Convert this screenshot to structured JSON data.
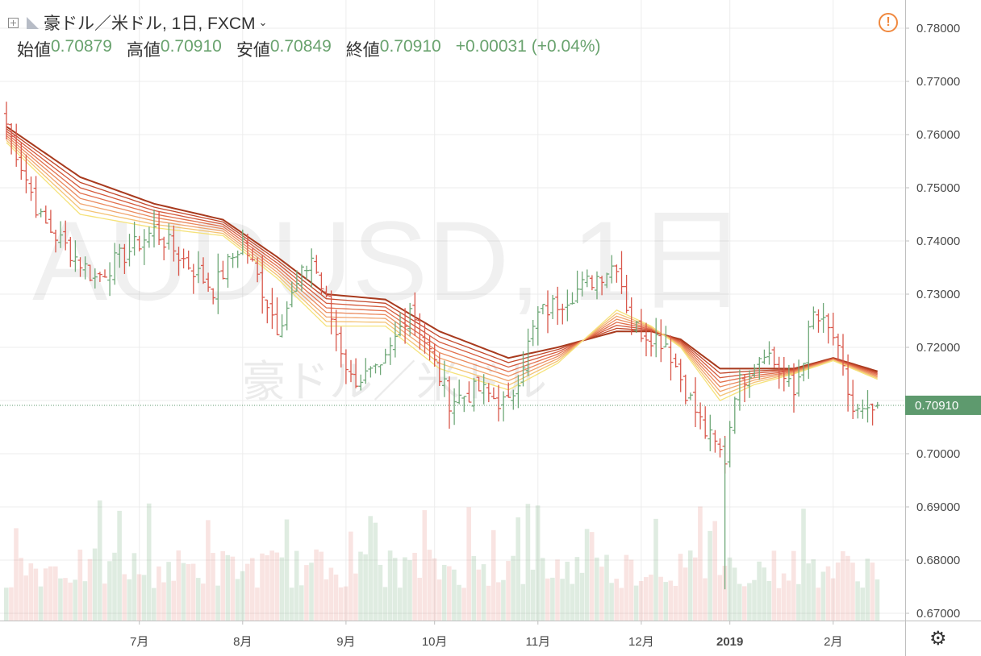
{
  "header": {
    "symbol_title": "豪ドル／米ドル, 1日, FXCM",
    "open_label": "始値",
    "open_value": "0.70879",
    "high_label": "高値",
    "high_value": "0.70910",
    "low_label": "安値",
    "low_value": "0.70849",
    "close_label": "終値",
    "close_value": "0.70910",
    "change": "+0.00031 (+0.04%)"
  },
  "watermark": {
    "symbol": "AUDUSD, 1日",
    "description": "豪ドル／米ドル"
  },
  "icons": {
    "add": "add-symbol-icon",
    "flag": "flag-icon",
    "dropdown": "chevron-down-icon",
    "alert": "warning-icon",
    "settings": "gear-icon"
  },
  "colors": {
    "up": "#6fa878",
    "down": "#d9584c",
    "last_price_bg": "#5e9a6e",
    "ribbon_slow": "#a83a1e",
    "ribbon_fast": "#f5e27a"
  },
  "chart_data": {
    "type": "candlestick",
    "timeframe": "1日",
    "source": "FXCM",
    "price_axis": {
      "ticks": [
        "0.78000",
        "0.77000",
        "0.76000",
        "0.75000",
        "0.74000",
        "0.73000",
        "0.72000",
        "0.71000",
        "0.70000",
        "0.69000",
        "0.68000",
        "0.67000"
      ],
      "range": [
        0.667,
        0.783
      ]
    },
    "last_price": "0.70910",
    "time_axis": [
      {
        "label": "7月",
        "bold": false,
        "bar": 27
      },
      {
        "label": "8月",
        "bold": false,
        "bar": 48
      },
      {
        "label": "9月",
        "bold": false,
        "bar": 69
      },
      {
        "label": "10月",
        "bold": false,
        "bar": 87
      },
      {
        "label": "11月",
        "bold": false,
        "bar": 108
      },
      {
        "label": "12月",
        "bold": false,
        "bar": 129
      },
      {
        "label": "2019",
        "bold": true,
        "bar": 147
      },
      {
        "label": "2月",
        "bold": false,
        "bar": 168
      }
    ],
    "key_points": [
      {
        "bar": 0,
        "close": 0.762
      },
      {
        "bar": 7,
        "close": 0.744
      },
      {
        "bar": 18,
        "close": 0.733
      },
      {
        "bar": 30,
        "close": 0.742
      },
      {
        "bar": 42,
        "close": 0.731
      },
      {
        "bar": 48,
        "close": 0.74
      },
      {
        "bar": 55,
        "close": 0.724
      },
      {
        "bar": 62,
        "close": 0.737
      },
      {
        "bar": 70,
        "close": 0.714
      },
      {
        "bar": 76,
        "close": 0.715
      },
      {
        "bar": 82,
        "close": 0.728
      },
      {
        "bar": 90,
        "close": 0.71
      },
      {
        "bar": 96,
        "close": 0.712
      },
      {
        "bar": 102,
        "close": 0.709
      },
      {
        "bar": 108,
        "close": 0.726
      },
      {
        "bar": 118,
        "close": 0.732
      },
      {
        "bar": 124,
        "close": 0.736
      },
      {
        "bar": 127,
        "close": 0.724
      },
      {
        "bar": 134,
        "close": 0.721
      },
      {
        "bar": 138,
        "close": 0.712
      },
      {
        "bar": 142,
        "close": 0.704
      },
      {
        "bar": 146,
        "close": 0.699
      },
      {
        "bar": 148,
        "close": 0.712
      },
      {
        "bar": 154,
        "close": 0.72
      },
      {
        "bar": 160,
        "close": 0.711
      },
      {
        "bar": 164,
        "close": 0.726
      },
      {
        "bar": 168,
        "close": 0.722
      },
      {
        "bar": 172,
        "close": 0.708
      },
      {
        "bar": 175,
        "close": 0.707
      },
      {
        "bar": 177,
        "close": 0.7091
      }
    ],
    "ribbon": [
      {
        "bar": 0,
        "slow": 0.7615,
        "fast": 0.7585
      },
      {
        "bar": 15,
        "slow": 0.752,
        "fast": 0.745
      },
      {
        "bar": 30,
        "slow": 0.747,
        "fast": 0.7425
      },
      {
        "bar": 44,
        "slow": 0.744,
        "fast": 0.741
      },
      {
        "bar": 55,
        "slow": 0.737,
        "fast": 0.733
      },
      {
        "bar": 65,
        "slow": 0.73,
        "fast": 0.724
      },
      {
        "bar": 77,
        "slow": 0.729,
        "fast": 0.724
      },
      {
        "bar": 88,
        "slow": 0.723,
        "fast": 0.716
      },
      {
        "bar": 102,
        "slow": 0.718,
        "fast": 0.712
      },
      {
        "bar": 112,
        "slow": 0.72,
        "fast": 0.717
      },
      {
        "bar": 124,
        "slow": 0.723,
        "fast": 0.727
      },
      {
        "bar": 131,
        "slow": 0.723,
        "fast": 0.724
      },
      {
        "bar": 137,
        "slow": 0.7215,
        "fast": 0.72
      },
      {
        "bar": 145,
        "slow": 0.716,
        "fast": 0.71
      },
      {
        "bar": 152,
        "slow": 0.716,
        "fast": 0.713
      },
      {
        "bar": 160,
        "slow": 0.716,
        "fast": 0.715
      },
      {
        "bar": 168,
        "slow": 0.718,
        "fast": 0.7175
      },
      {
        "bar": 177,
        "slow": 0.7155,
        "fast": 0.714
      }
    ]
  }
}
